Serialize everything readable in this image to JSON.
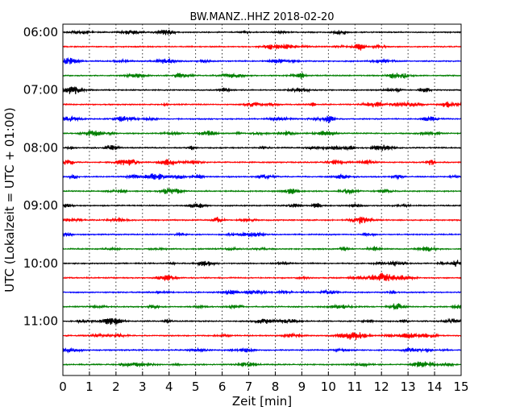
{
  "chart_data": {
    "type": "line",
    "title": "BW.MANZ..HHZ 2018-02-20",
    "xlabel": "Zeit  [min]",
    "ylabel": "UTC (Lokalzeit = UTC + 01:00)",
    "xlim": [
      0,
      15
    ],
    "x_ticks": [
      "0",
      "1",
      "2",
      "3",
      "4",
      "5",
      "6",
      "7",
      "8",
      "9",
      "10",
      "11",
      "12",
      "13",
      "14",
      "15"
    ],
    "y_tick_labels": [
      "06:00",
      "07:00",
      "08:00",
      "09:00",
      "10:00",
      "11:00"
    ],
    "y_tick_rows": [
      0,
      4,
      8,
      12,
      16,
      20
    ],
    "vertical_grid": true,
    "color_cycle": [
      "#000000",
      "#ff0000",
      "#0000ff",
      "#007f00"
    ],
    "trace_interval_min": 15,
    "series": [
      {
        "start": "06:00",
        "color": "#000000"
      },
      {
        "start": "06:15",
        "color": "#ff0000"
      },
      {
        "start": "06:30",
        "color": "#0000ff"
      },
      {
        "start": "06:45",
        "color": "#007f00"
      },
      {
        "start": "07:00",
        "color": "#000000"
      },
      {
        "start": "07:15",
        "color": "#ff0000"
      },
      {
        "start": "07:30",
        "color": "#0000ff"
      },
      {
        "start": "07:45",
        "color": "#007f00"
      },
      {
        "start": "08:00",
        "color": "#000000"
      },
      {
        "start": "08:15",
        "color": "#ff0000"
      },
      {
        "start": "08:30",
        "color": "#0000ff"
      },
      {
        "start": "08:45",
        "color": "#007f00"
      },
      {
        "start": "09:00",
        "color": "#000000"
      },
      {
        "start": "09:15",
        "color": "#ff0000"
      },
      {
        "start": "09:30",
        "color": "#0000ff"
      },
      {
        "start": "09:45",
        "color": "#007f00"
      },
      {
        "start": "10:00",
        "color": "#000000"
      },
      {
        "start": "10:15",
        "color": "#ff0000"
      },
      {
        "start": "10:30",
        "color": "#0000ff"
      },
      {
        "start": "10:45",
        "color": "#007f00"
      },
      {
        "start": "11:00",
        "color": "#000000"
      },
      {
        "start": "11:15",
        "color": "#ff0000"
      },
      {
        "start": "11:30",
        "color": "#0000ff"
      },
      {
        "start": "11:45",
        "color": "#007f00"
      }
    ]
  }
}
